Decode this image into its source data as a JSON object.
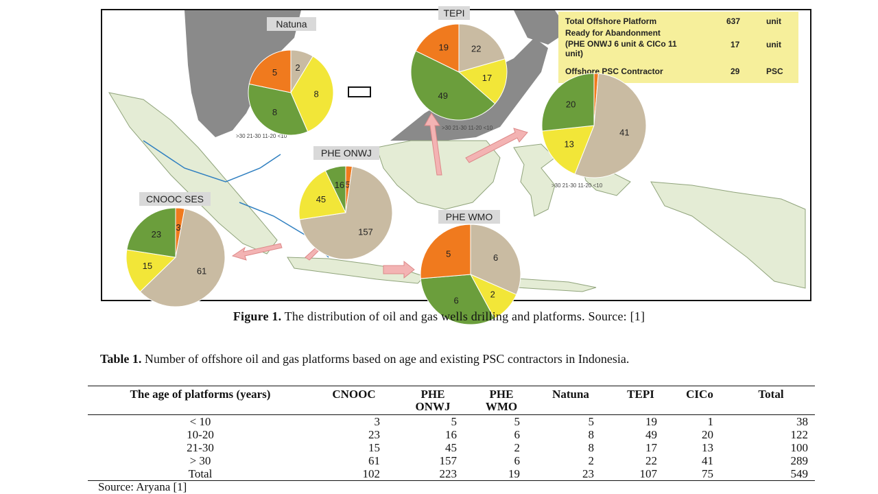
{
  "figure": {
    "caption_label": "Figure 1.",
    "caption_text": "The distribution of oil and gas wells drilling and platforms.  Source: [1]",
    "info_box": {
      "rows": [
        {
          "label": "Total Offshore Platform",
          "value": "637",
          "unit": "unit"
        },
        {
          "label_lines": [
            "Ready for Abandonment",
            "(PHE ONWJ 6 unit & CICo 11",
            "unit)"
          ],
          "value": "17",
          "unit": "unit"
        },
        {
          "label": "Offshore PSC Contractor",
          "value": "29",
          "unit": "PSC"
        }
      ]
    },
    "regions": [
      {
        "name": "Natuna",
        "slices": [
          {
            "value": 2,
            "color": "#c9bba2"
          },
          {
            "value": 8,
            "color": "#f2e638"
          },
          {
            "value": 8,
            "color": "#6b9e3c"
          },
          {
            "value": 5,
            "color": "#f07a1e"
          }
        ],
        "labels": [
          "2",
          "8",
          "8",
          "5"
        ]
      },
      {
        "name": "TEPI",
        "slices": [
          {
            "value": 22,
            "color": "#c9bba2"
          },
          {
            "value": 17,
            "color": "#f2e638"
          },
          {
            "value": 49,
            "color": "#6b9e3c"
          },
          {
            "value": 19,
            "color": "#f07a1e"
          }
        ],
        "labels": [
          "22",
          "17",
          "49",
          "19"
        ]
      },
      {
        "name": "",
        "slices": [
          {
            "value": 1,
            "color": "#f07a1e"
          },
          {
            "value": 41,
            "color": "#c9bba2"
          },
          {
            "value": 13,
            "color": "#f2e638"
          },
          {
            "value": 20,
            "color": "#6b9e3c"
          }
        ],
        "labels": [
          "",
          "41",
          "13",
          "20"
        ]
      },
      {
        "name": "PHE ONWJ",
        "slices": [
          {
            "value": 5,
            "color": "#f07a1e"
          },
          {
            "value": 157,
            "color": "#c9bba2"
          },
          {
            "value": 45,
            "color": "#f2e638"
          },
          {
            "value": 16,
            "color": "#6b9e3c"
          }
        ],
        "labels": [
          "5",
          "157",
          "45",
          "16"
        ]
      },
      {
        "name": "CNOOC SES",
        "slices": [
          {
            "value": 3,
            "color": "#f07a1e"
          },
          {
            "value": 61,
            "color": "#c9bba2"
          },
          {
            "value": 15,
            "color": "#f2e638"
          },
          {
            "value": 23,
            "color": "#6b9e3c"
          }
        ],
        "labels": [
          "3",
          "61",
          "15",
          "23"
        ]
      },
      {
        "name": "PHE WMO",
        "slices": [
          {
            "value": 6,
            "color": "#c9bba2"
          },
          {
            "value": 2,
            "color": "#f2e638"
          },
          {
            "value": 6,
            "color": "#6b9e3c"
          },
          {
            "value": 5,
            "color": "#f07a1e"
          }
        ],
        "labels": [
          "6",
          "2",
          "6",
          "5"
        ]
      }
    ],
    "map_legend_fragments": [
      ">30",
      "21-30",
      "11-20",
      "<10"
    ]
  },
  "table": {
    "title_label": "Table 1.",
    "title_text": "Number of offshore oil and gas platforms based on age and existing PSC contractors in Indonesia.",
    "headers": [
      {
        "lines": [
          "The age of platforms (years)"
        ]
      },
      {
        "lines": [
          "CNOOC"
        ]
      },
      {
        "lines": [
          "PHE",
          "ONWJ"
        ]
      },
      {
        "lines": [
          "PHE",
          "WMO"
        ]
      },
      {
        "lines": [
          "Natuna"
        ]
      },
      {
        "lines": [
          "TEPI"
        ]
      },
      {
        "lines": [
          "CICo"
        ]
      },
      {
        "lines": [
          "Total"
        ]
      }
    ],
    "rows": [
      [
        "< 10",
        "3",
        "5",
        "5",
        "5",
        "19",
        "1",
        "38"
      ],
      [
        "10-20",
        "23",
        "16",
        "6",
        "8",
        "49",
        "20",
        "122"
      ],
      [
        "21-30",
        "15",
        "45",
        "2",
        "8",
        "17",
        "13",
        "100"
      ],
      [
        "> 30",
        "61",
        "157",
        "6",
        "2",
        "22",
        "41",
        "289"
      ],
      [
        "Total",
        "102",
        "223",
        "19",
        "23",
        "107",
        "75",
        "549"
      ]
    ],
    "source": "Source: Aryana [1]"
  }
}
